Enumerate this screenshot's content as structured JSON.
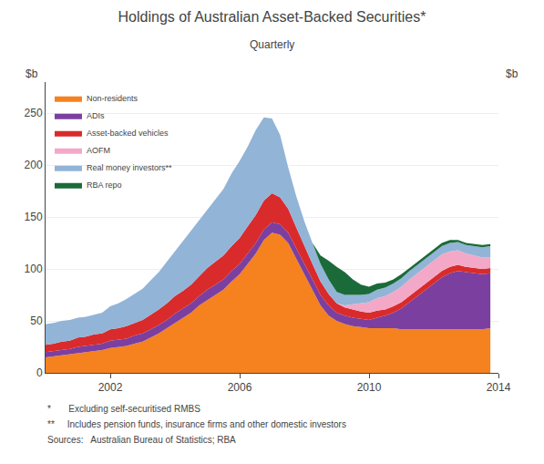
{
  "chart_data": {
    "type": "area",
    "stacked": true,
    "title": "Holdings of Australian Asset-Backed Securities*",
    "subtitle": "Quarterly",
    "ylabel": "$b",
    "y2label": "$b",
    "footnotes": [
      "*       Excluding self-securitised RMBS",
      "**     Includes pension funds, insurance firms and other domestic investors",
      "Sources:   Australian Bureau of Statistics; RBA"
    ],
    "x": [
      2000.0,
      2000.25,
      2000.5,
      2000.75,
      2001.0,
      2001.25,
      2001.5,
      2001.75,
      2002.0,
      2002.25,
      2002.5,
      2002.75,
      2003.0,
      2003.25,
      2003.5,
      2003.75,
      2004.0,
      2004.25,
      2004.5,
      2004.75,
      2005.0,
      2005.25,
      2005.5,
      2005.75,
      2006.0,
      2006.25,
      2006.5,
      2006.75,
      2007.0,
      2007.25,
      2007.5,
      2007.75,
      2008.0,
      2008.25,
      2008.5,
      2008.75,
      2009.0,
      2009.25,
      2009.5,
      2009.75,
      2010.0,
      2010.25,
      2010.5,
      2010.75,
      2011.0,
      2011.25,
      2011.5,
      2011.75,
      2012.0,
      2012.25,
      2012.5,
      2012.75,
      2013.0,
      2013.25,
      2013.5,
      2013.75
    ],
    "xlim": [
      2000,
      2014
    ],
    "xticks": [
      2002,
      2006,
      2010,
      2014
    ],
    "ylim": [
      0,
      280
    ],
    "yticks": [
      0,
      50,
      100,
      150,
      200,
      250
    ],
    "y2lim": [
      0,
      280
    ],
    "y2ticks": [
      0,
      50,
      100,
      150,
      200,
      250
    ],
    "grid": true,
    "legend": "upper left",
    "series": [
      {
        "name": "Non-residents",
        "color": "#F5821F",
        "values": [
          15,
          16,
          17,
          18,
          19,
          20,
          21,
          22,
          24,
          25,
          26,
          28,
          30,
          34,
          38,
          43,
          48,
          53,
          58,
          65,
          70,
          75,
          80,
          88,
          95,
          105,
          115,
          128,
          135,
          133,
          125,
          110,
          95,
          80,
          65,
          55,
          50,
          47,
          45,
          44,
          43,
          43,
          43,
          43,
          42,
          42,
          42,
          42,
          42,
          42,
          42,
          42,
          42,
          42,
          42,
          43
        ]
      },
      {
        "name": "ADIs",
        "color": "#7B3FA0",
        "values": [
          5,
          5,
          5,
          5,
          6,
          6,
          6,
          6,
          7,
          7,
          7,
          8,
          8,
          8,
          8,
          8,
          9,
          9,
          9,
          9,
          10,
          10,
          10,
          10,
          10,
          10,
          10,
          10,
          10,
          10,
          10,
          10,
          10,
          10,
          10,
          10,
          8,
          8,
          8,
          8,
          8,
          10,
          12,
          15,
          20,
          26,
          32,
          38,
          44,
          50,
          54,
          56,
          55,
          54,
          53,
          53
        ]
      },
      {
        "name": "Asset-backed vehicles",
        "color": "#D92B2B",
        "values": [
          7,
          7,
          8,
          8,
          9,
          9,
          10,
          10,
          11,
          11,
          12,
          12,
          13,
          14,
          15,
          16,
          17,
          17,
          18,
          19,
          21,
          22,
          23,
          24,
          25,
          26,
          27,
          28,
          28,
          26,
          23,
          20,
          17,
          15,
          13,
          11,
          9,
          8,
          8,
          7,
          7,
          7,
          6,
          6,
          6,
          6,
          6,
          6,
          6,
          6,
          6,
          6,
          5,
          5,
          5,
          5
        ]
      },
      {
        "name": "AOFM",
        "color": "#F4A8C7",
        "values": [
          0,
          0,
          0,
          0,
          0,
          0,
          0,
          0,
          0,
          0,
          0,
          0,
          0,
          0,
          0,
          0,
          0,
          0,
          0,
          0,
          0,
          0,
          0,
          0,
          0,
          0,
          0,
          0,
          0,
          0,
          0,
          0,
          0,
          0,
          0,
          0,
          0,
          2,
          5,
          8,
          10,
          12,
          13,
          14,
          15,
          16,
          16,
          16,
          16,
          16,
          15,
          14,
          13,
          12,
          11,
          10
        ]
      },
      {
        "name": "Real money investors**",
        "color": "#92B4D7",
        "values": [
          20,
          20,
          20,
          20,
          19,
          19,
          19,
          20,
          22,
          24,
          26,
          28,
          30,
          33,
          36,
          40,
          43,
          47,
          51,
          53,
          56,
          60,
          64,
          70,
          74,
          77,
          82,
          80,
          72,
          60,
          40,
          30,
          24,
          20,
          17,
          14,
          11,
          10,
          9,
          8,
          8,
          8,
          8,
          8,
          8,
          8,
          8,
          8,
          8,
          8,
          8,
          8,
          8,
          9,
          10,
          11
        ]
      },
      {
        "name": "RBA repo",
        "color": "#1B6B3A",
        "values": [
          0,
          0,
          0,
          0,
          0,
          0,
          0,
          0,
          0,
          0,
          0,
          0,
          0,
          0,
          0,
          0,
          0,
          0,
          0,
          0,
          0,
          0,
          0,
          0,
          0,
          0,
          0,
          0,
          0,
          0,
          0,
          0,
          0,
          0,
          8,
          18,
          24,
          22,
          15,
          10,
          7,
          6,
          5,
          4,
          4,
          3,
          3,
          3,
          3,
          3,
          3,
          2,
          2,
          2,
          2,
          2
        ]
      }
    ]
  }
}
